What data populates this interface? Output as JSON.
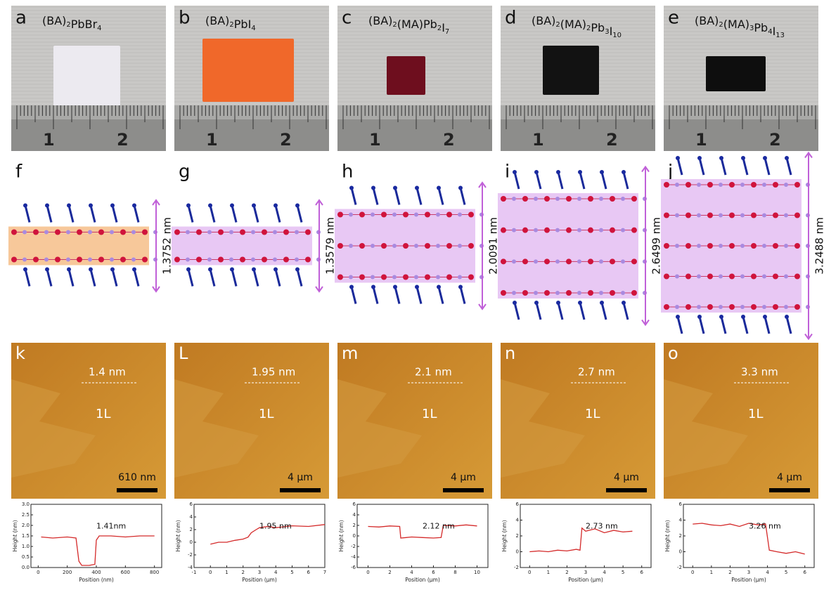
{
  "panels": [
    {
      "photo": {
        "label": "a",
        "formula": [
          [
            "(BA)",
            "2"
          ],
          [
            "PbBr",
            "4"
          ]
        ],
        "ruler": [
          "1",
          "2"
        ]
      },
      "structure": {
        "label": "f",
        "thickness": "1.3752 nm"
      },
      "afm": {
        "label": "k",
        "step": "1.4 nm",
        "layer": "1L",
        "scale": "610 nm"
      },
      "profile": {
        "type": "line",
        "ylabel": "Height (nm)",
        "xlabel": "Position (nm)",
        "color": "#d42a2a",
        "xlim": [
          -50,
          850
        ],
        "ylim": [
          0,
          3
        ],
        "xticks": [
          0,
          200,
          400,
          600,
          800
        ],
        "yticks": [
          {
            "value": 0,
            "label": "0.0"
          },
          0.5,
          {
            "value": 1,
            "label": "1.0"
          },
          1.5,
          {
            "value": 2,
            "label": "2.0"
          },
          2.5,
          {
            "value": 3,
            "label": "3.0"
          }
        ],
        "x": [
          20,
          100,
          200,
          260,
          280,
          300,
          350,
          390,
          400,
          420,
          500,
          600,
          700,
          800
        ],
        "values": [
          1.45,
          1.4,
          1.45,
          1.4,
          0.3,
          0.1,
          0.1,
          0.15,
          1.3,
          1.5,
          1.5,
          1.45,
          1.5,
          1.5
        ],
        "annotation": "1.41nm"
      }
    },
    {
      "photo": {
        "label": "b",
        "formula": [
          [
            "(BA)",
            "2"
          ],
          [
            "PbI",
            "4"
          ]
        ],
        "ruler": [
          "1",
          "2"
        ]
      },
      "structure": {
        "label": "g",
        "thickness": "1.3579 nm"
      },
      "afm": {
        "label": "L",
        "step": "1.95 nm",
        "layer": "1L",
        "scale": "4 μm"
      },
      "profile": {
        "type": "line",
        "ylabel": "Height (nm)",
        "xlabel": "Position (μm)",
        "color": "#d42a2a",
        "xlim": [
          -1,
          7
        ],
        "ylim": [
          -4,
          6
        ],
        "xticks": [
          -1,
          0,
          1,
          2,
          3,
          4,
          5,
          6,
          7
        ],
        "yticks": [
          -4,
          -2,
          0,
          2,
          4,
          6
        ],
        "x": [
          0,
          0.5,
          1,
          1.5,
          2,
          2.3,
          2.5,
          2.8,
          3,
          3.5,
          4,
          5,
          6,
          7
        ],
        "values": [
          -0.3,
          0,
          0,
          0.3,
          0.5,
          0.8,
          1.5,
          2,
          2.3,
          2.5,
          2.3,
          2.6,
          2.5,
          2.8
        ],
        "annotation": "1.95 nm"
      }
    },
    {
      "photo": {
        "label": "c",
        "formula": [
          [
            "(BA)",
            "2"
          ],
          [
            "(MA)Pb",
            "2"
          ],
          [
            "I",
            "7"
          ]
        ],
        "ruler": [
          "1",
          "2"
        ]
      },
      "structure": {
        "label": "h",
        "thickness": "2.0091 nm"
      },
      "afm": {
        "label": "m",
        "step": "2.1 nm",
        "layer": "1L",
        "scale": "4 μm"
      },
      "profile": {
        "type": "line",
        "ylabel": "Height (nm)",
        "xlabel": "Position (μm)",
        "color": "#d42a2a",
        "xlim": [
          -1,
          11
        ],
        "ylim": [
          -6,
          6
        ],
        "xticks": [
          0,
          2,
          4,
          6,
          8,
          10
        ],
        "yticks": [
          -6,
          -4,
          -2,
          0,
          2,
          4,
          6
        ],
        "x": [
          0,
          1,
          2,
          2.9,
          3,
          3.5,
          4,
          5,
          6,
          6.7,
          6.9,
          8,
          9,
          10
        ],
        "values": [
          1.8,
          1.7,
          1.9,
          1.8,
          -0.4,
          -0.3,
          -0.2,
          -0.3,
          -0.4,
          -0.3,
          2,
          1.9,
          2.1,
          1.9
        ],
        "annotation": "2.12 nm"
      }
    },
    {
      "photo": {
        "label": "d",
        "formula": [
          [
            "(BA)",
            "2"
          ],
          [
            "(MA)",
            "2"
          ],
          [
            "Pb",
            "3"
          ],
          [
            "I",
            "10"
          ]
        ],
        "ruler": [
          "1",
          "2"
        ]
      },
      "structure": {
        "label": "i",
        "thickness": "2.6499 nm"
      },
      "afm": {
        "label": "n",
        "step": "2.7 nm",
        "layer": "1L",
        "scale": "4 μm"
      },
      "profile": {
        "type": "line",
        "ylabel": "Height (nm)",
        "xlabel": "Position (μm)",
        "color": "#d42a2a",
        "xlim": [
          -0.5,
          6.5
        ],
        "ylim": [
          -2,
          6
        ],
        "xticks": [
          0,
          1,
          2,
          3,
          4,
          5,
          6
        ],
        "yticks": [
          -2,
          0,
          2,
          4,
          6
        ],
        "x": [
          0,
          0.5,
          1,
          1.5,
          2,
          2.5,
          2.7,
          2.8,
          3,
          3.5,
          4,
          4.5,
          5,
          5.5
        ],
        "values": [
          0,
          0.1,
          0,
          0.2,
          0.1,
          0.3,
          0.2,
          3,
          2.6,
          2.9,
          2.4,
          2.7,
          2.5,
          2.6
        ],
        "annotation": "2.73 nm"
      }
    },
    {
      "photo": {
        "label": "e",
        "formula": [
          [
            "(BA)",
            "2"
          ],
          [
            "(MA)",
            "3"
          ],
          [
            "Pb",
            "4"
          ],
          [
            "I",
            "13"
          ]
        ],
        "ruler": [
          "1",
          "2"
        ]
      },
      "structure": {
        "label": "j",
        "thickness": "3.2488 nm"
      },
      "afm": {
        "label": "o",
        "step": "3.3 nm",
        "layer": "1L",
        "scale": "4 μm"
      },
      "profile": {
        "type": "line",
        "ylabel": "Height (nm)",
        "xlabel": "Position (μm)",
        "color": "#d42a2a",
        "xlim": [
          -0.5,
          6.5
        ],
        "ylim": [
          -2,
          6
        ],
        "xticks": [
          0,
          1,
          2,
          3,
          4,
          5,
          6
        ],
        "yticks": [
          -2,
          0,
          2,
          4,
          6
        ],
        "x": [
          0,
          0.5,
          1,
          1.5,
          2,
          2.5,
          3,
          3.5,
          3.9,
          4.1,
          4.5,
          5,
          5.5,
          6
        ],
        "values": [
          3.5,
          3.6,
          3.4,
          3.3,
          3.5,
          3.2,
          3.6,
          3.4,
          3.5,
          0.2,
          0,
          -0.2,
          0,
          -0.3
        ],
        "annotation": "3.26 nm"
      }
    }
  ]
}
